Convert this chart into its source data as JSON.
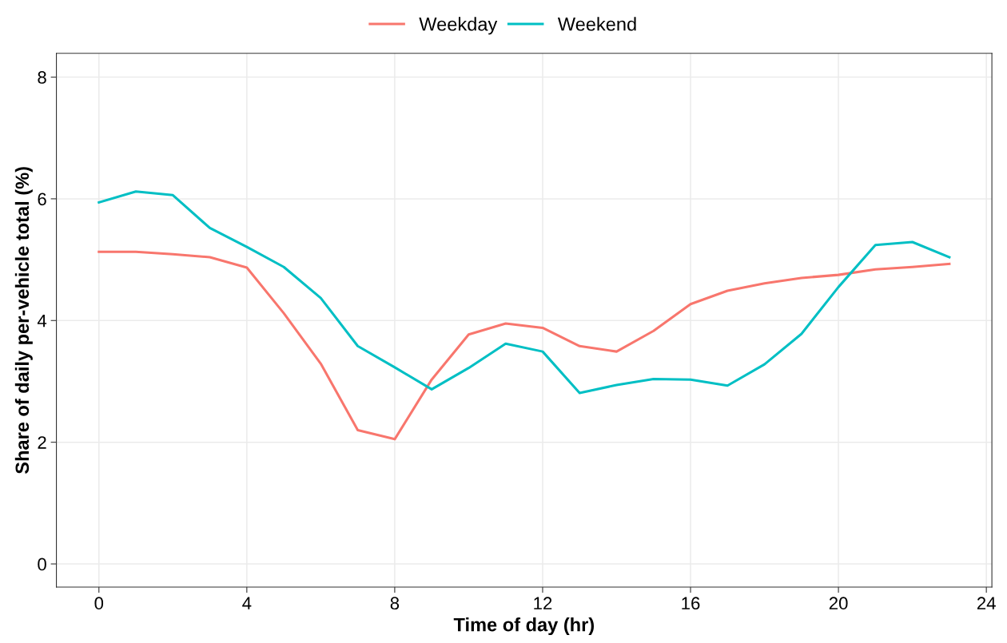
{
  "chart_data": {
    "type": "line",
    "xlabel": "Time of day (hr)",
    "ylabel": "Share of daily per-vehicle total (%)",
    "x": [
      0,
      1,
      2,
      3,
      4,
      5,
      6,
      7,
      8,
      9,
      10,
      11,
      12,
      13,
      14,
      15,
      16,
      17,
      18,
      19,
      20,
      21,
      22,
      23
    ],
    "series": [
      {
        "name": "Weekday",
        "color": "#f8766d",
        "values": [
          5.13,
          5.13,
          5.09,
          5.04,
          4.87,
          4.12,
          3.29,
          2.2,
          2.05,
          3.03,
          3.77,
          3.95,
          3.88,
          3.58,
          3.49,
          3.83,
          4.27,
          4.49,
          4.61,
          4.7,
          4.75,
          4.84,
          4.88,
          4.93
        ]
      },
      {
        "name": "Weekend",
        "color": "#00bfc4",
        "values": [
          5.94,
          6.12,
          6.06,
          5.52,
          5.21,
          4.88,
          4.37,
          3.58,
          3.23,
          2.87,
          3.22,
          3.62,
          3.49,
          2.81,
          2.94,
          3.04,
          3.03,
          2.93,
          3.28,
          3.78,
          4.55,
          5.24,
          5.29,
          5.04
        ]
      }
    ],
    "xlim": [
      -1.15,
      24.15
    ],
    "xticks": [
      0,
      4,
      8,
      12,
      16,
      20,
      24
    ],
    "ylim": [
      -0.38,
      8.39
    ],
    "yticks": [
      0,
      2,
      4,
      6,
      8
    ],
    "grid": true,
    "legend": "top",
    "marker": "none",
    "line_style": "solid"
  }
}
